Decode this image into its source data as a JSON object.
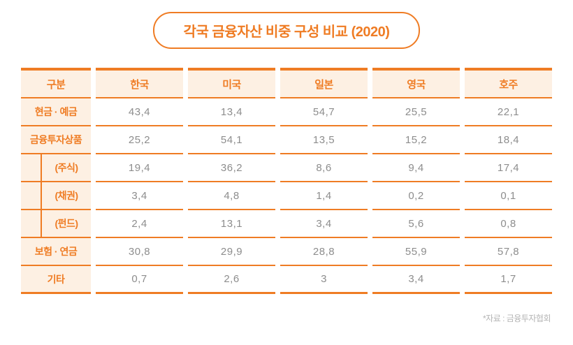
{
  "title": "각국 금융자산 비중 구성 비교 (2020)",
  "source_note": "*자료 : 금융투자협회",
  "colors": {
    "accent": "#ef7c24",
    "cell_background": "#fdf0e3",
    "value_text": "#8d8d8d",
    "note_text": "#b4b4b4"
  },
  "table": {
    "headers": [
      "구분",
      "한국",
      "미국",
      "일본",
      "영국",
      "호주"
    ],
    "rows": [
      {
        "label": "현금 · 예금",
        "indent": false,
        "values": [
          "43,4",
          "13,4",
          "54,7",
          "25,5",
          "22,1"
        ]
      },
      {
        "label": "금융투자상품",
        "indent": false,
        "values": [
          "25,2",
          "54,1",
          "13,5",
          "15,2",
          "18,4"
        ]
      },
      {
        "label": "(주식)",
        "indent": true,
        "values": [
          "19,4",
          "36,2",
          "8,6",
          "9,4",
          "17,4"
        ]
      },
      {
        "label": "(채권)",
        "indent": true,
        "values": [
          "3,4",
          "4,8",
          "1,4",
          "0,2",
          "0,1"
        ]
      },
      {
        "label": "(펀드)",
        "indent": true,
        "values": [
          "2,4",
          "13,1",
          "3,4",
          "5,6",
          "0,8"
        ]
      },
      {
        "label": "보험 · 연금",
        "indent": false,
        "values": [
          "30,8",
          "29,9",
          "28,8",
          "55,9",
          "57,8"
        ]
      },
      {
        "label": "기타",
        "indent": false,
        "values": [
          "0,7",
          "2,6",
          "3",
          "3,4",
          "1,7"
        ]
      }
    ]
  },
  "chart_data": {
    "type": "table",
    "title": "각국 금융자산 비중 구성 비교 (2020)",
    "unit": "%",
    "source": "금융투자협회",
    "row_header": "구분",
    "categories": [
      "현금·예금",
      "금융투자상품",
      "(주식)",
      "(채권)",
      "(펀드)",
      "보험·연금",
      "기타"
    ],
    "series": [
      {
        "name": "한국",
        "values": [
          43.4,
          25.2,
          19.4,
          3.4,
          2.4,
          30.8,
          0.7
        ]
      },
      {
        "name": "미국",
        "values": [
          13.4,
          54.1,
          36.2,
          4.8,
          13.1,
          29.9,
          2.6
        ]
      },
      {
        "name": "일본",
        "values": [
          54.7,
          13.5,
          8.6,
          1.4,
          3.4,
          28.8,
          3
        ]
      },
      {
        "name": "영국",
        "values": [
          25.5,
          15.2,
          9.4,
          0.2,
          5.6,
          55.9,
          3.4
        ]
      },
      {
        "name": "호주",
        "values": [
          22.1,
          18.4,
          17.4,
          0.1,
          0.8,
          57.8,
          1.7
        ]
      }
    ]
  }
}
